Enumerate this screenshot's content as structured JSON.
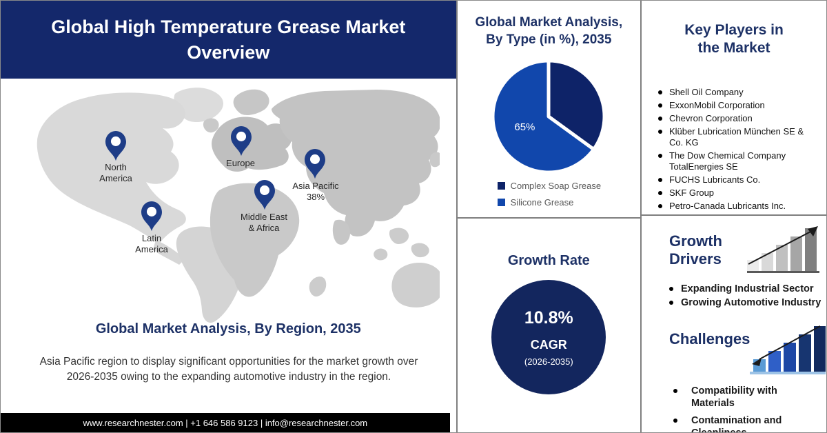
{
  "header": {
    "title": "Global High Temperature Grease Market\nOverview"
  },
  "map_section": {
    "regions": {
      "north_america": "North\nAmerica",
      "europe": "Europe",
      "asia_pacific": "Asia Pacific\n38%",
      "latin_america": "Latin\nAmerica",
      "middle_east_africa": "Middle East\n& Africa"
    },
    "heading": "Global Market Analysis, By Region, 2035",
    "description": "Asia Pacific region to display significant opportunities for the market growth over 2026-2035 owing to the expanding automotive industry in the region."
  },
  "footer": {
    "text": "www.researchnester.com | +1 646 586 9123 | info@researchnester.com"
  },
  "chart_data": [
    {
      "type": "pie",
      "title": "Global Market Analysis,\nBy Type (in %), 2035",
      "slices": [
        {
          "label": "Complex Soap Grease",
          "value": 35,
          "color": "#0e2368"
        },
        {
          "label": "Silicone Grease",
          "value": 65,
          "color": "#1147ac"
        }
      ],
      "data_label": "65%",
      "legend_position": "bottom-left",
      "start_angle_deg": 0,
      "direction": "clockwise"
    }
  ],
  "growth_rate": {
    "heading": "Growth Rate",
    "value": "10.8%",
    "label": "CAGR",
    "period": "(2026-2035)"
  },
  "key_players": {
    "title": "Key Players in\nthe Market",
    "items": [
      "Shell Oil Company",
      "ExxonMobil Corporation",
      "Chevron Corporation",
      "Klüber Lubrication München SE & Co. KG",
      "The Dow Chemical Company\nTotalEnergies SE",
      "FUCHS Lubricants Co.",
      "SKF Group",
      "Petro-Canada Lubricants Inc."
    ]
  },
  "growth_drivers": {
    "title": "Growth\nDrivers",
    "items": [
      "Expanding Industrial Sector",
      "Growing Automotive Industry"
    ]
  },
  "challenges": {
    "title": "Challenges",
    "items": [
      "Compatibility with Materials",
      "Contamination and Cleanliness"
    ]
  },
  "colors": {
    "header_navy": "#14286b",
    "heading_navy": "#1d3166",
    "pie_dark": "#0e2368",
    "pie_bright": "#1147ac",
    "growth_circle": "#13265e",
    "pin_navy": "#1e3d87",
    "footer_black": "#000000"
  }
}
